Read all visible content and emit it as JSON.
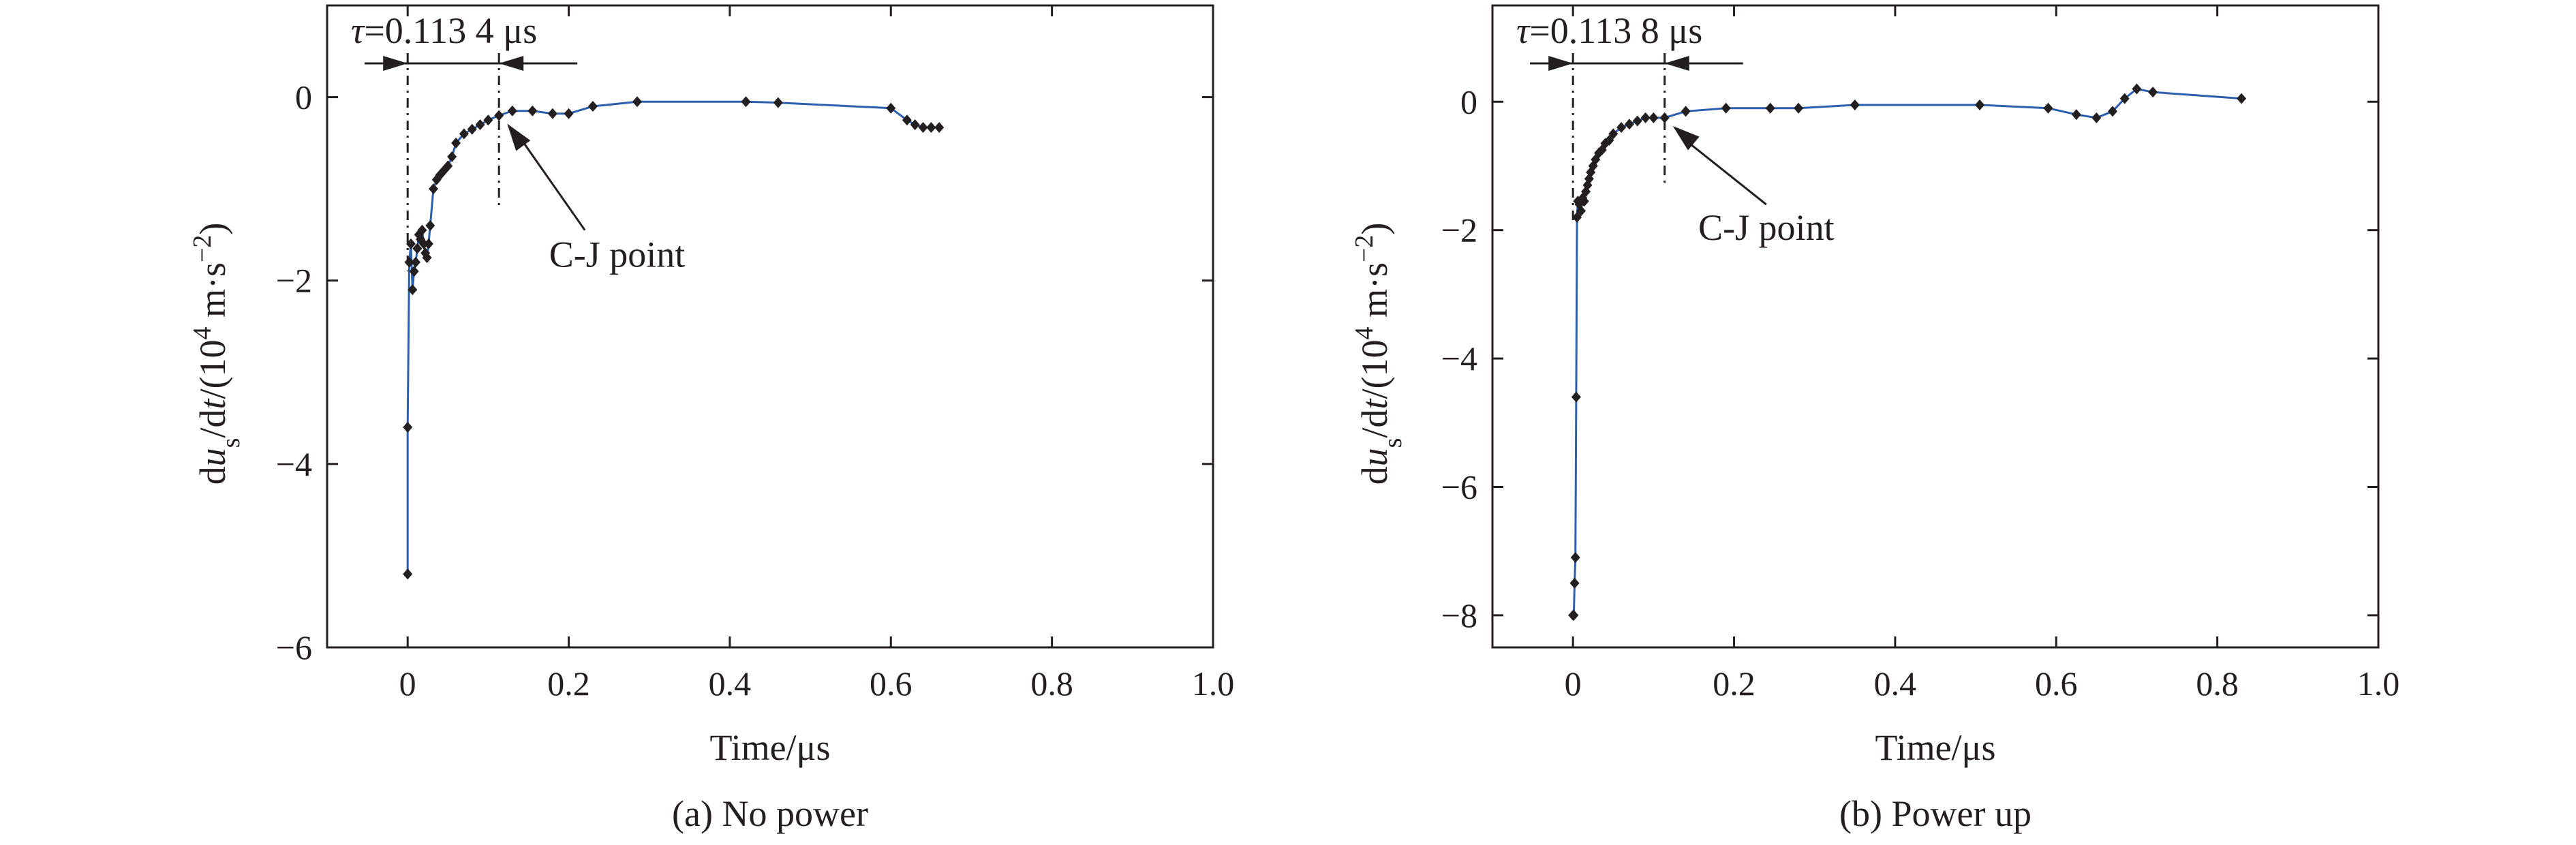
{
  "colors": {
    "line": "#2c5fad",
    "marker": "#231f20",
    "axis": "#231f20"
  },
  "chart_data": [
    {
      "type": "line",
      "caption": "(a) No power",
      "xlabel": "Time/μs",
      "ylabel": {
        "parts": [
          "d",
          "u",
          "s",
          "/d",
          "t",
          "/(10",
          "4",
          " m·s",
          "−2",
          ")"
        ]
      },
      "xlim": [
        -0.1,
        1.0
      ],
      "ylim": [
        -6,
        1.0
      ],
      "xticks": [
        0,
        0.2,
        0.4,
        0.6,
        0.8,
        1.0
      ],
      "xtick_labels": [
        "0",
        "0.2",
        "0.4",
        "0.6",
        "0.8",
        "1.0"
      ],
      "yticks": [
        -6,
        -4,
        -2,
        0
      ],
      "ytick_labels": [
        "−6",
        "−4",
        "−2",
        "0"
      ],
      "grid": false,
      "tau_label": {
        "symbol": "τ",
        "value": "=0.113 4 μs"
      },
      "tau_range": [
        0,
        0.1134
      ],
      "annotation": "C-J point",
      "cj_point": [
        0.1134,
        -0.2
      ],
      "series": [
        {
          "x": [
            0,
            0,
            0.002,
            0.004,
            0.006,
            0.008,
            0.01,
            0.012,
            0.014,
            0.016,
            0.018,
            0.02,
            0.022,
            0.024,
            0.026,
            0.028,
            0.032,
            0.036,
            0.04,
            0.045,
            0.05,
            0.055,
            0.06,
            0.07,
            0.08,
            0.09,
            0.1,
            0.1134,
            0.13,
            0.155,
            0.18,
            0.2,
            0.23,
            0.285,
            0.42,
            0.46,
            0.6,
            0.62,
            0.63,
            0.64,
            0.65,
            0.66
          ],
          "y": [
            -5.2,
            -3.6,
            -1.8,
            -1.6,
            -2.1,
            -1.9,
            -1.8,
            -1.65,
            -1.5,
            -1.55,
            -1.45,
            -1.6,
            -1.7,
            -1.75,
            -1.6,
            -1.4,
            -1.0,
            -0.9,
            -0.85,
            -0.8,
            -0.75,
            -0.65,
            -0.5,
            -0.4,
            -0.35,
            -0.3,
            -0.25,
            -0.2,
            -0.15,
            -0.15,
            -0.18,
            -0.18,
            -0.1,
            -0.05,
            -0.05,
            -0.06,
            -0.12,
            -0.25,
            -0.3,
            -0.33,
            -0.33,
            -0.33
          ]
        }
      ]
    },
    {
      "type": "line",
      "caption": "(b) Power up",
      "xlabel": "Time/μs",
      "ylabel": {
        "parts": [
          "d",
          "u",
          "s",
          "/d",
          "t",
          "/(10",
          "4",
          " m·s",
          "−2",
          ")"
        ]
      },
      "xlim": [
        -0.1,
        1.0
      ],
      "ylim": [
        -8.5,
        1.5
      ],
      "xticks": [
        0,
        0.2,
        0.4,
        0.6,
        0.8,
        1.0
      ],
      "xtick_labels": [
        "0",
        "0.2",
        "0.4",
        "0.6",
        "0.8",
        "1.0"
      ],
      "yticks": [
        -8,
        -6,
        -4,
        -2,
        0
      ],
      "ytick_labels": [
        "−8",
        "−6",
        "−4",
        "−2",
        "0"
      ],
      "grid": false,
      "tau_label": {
        "symbol": "τ",
        "value": "=0.113 8 μs"
      },
      "tau_range": [
        0,
        0.1138
      ],
      "annotation": "C-J point",
      "cj_point": [
        0.1138,
        -0.25
      ],
      "series": [
        {
          "x": [
            0,
            0.001,
            0.002,
            0.003,
            0.004,
            0.005,
            0.006,
            0.008,
            0.01,
            0.012,
            0.014,
            0.016,
            0.018,
            0.02,
            0.022,
            0.025,
            0.028,
            0.032,
            0.036,
            0.04,
            0.045,
            0.05,
            0.06,
            0.07,
            0.08,
            0.09,
            0.1,
            0.1138,
            0.14,
            0.19,
            0.245,
            0.28,
            0.35,
            0.505,
            0.59,
            0.625,
            0.65,
            0.67,
            0.685,
            0.7,
            0.72,
            0.83
          ],
          "y": [
            -8.0,
            -8.0,
            -7.5,
            -7.1,
            -4.6,
            -1.8,
            -1.55,
            -1.6,
            -1.7,
            -1.5,
            -1.55,
            -1.4,
            -1.3,
            -1.2,
            -1.1,
            -1.0,
            -0.9,
            -0.8,
            -0.75,
            -0.65,
            -0.6,
            -0.5,
            -0.4,
            -0.35,
            -0.3,
            -0.25,
            -0.25,
            -0.25,
            -0.15,
            -0.1,
            -0.1,
            -0.1,
            -0.05,
            -0.05,
            -0.1,
            -0.2,
            -0.25,
            -0.15,
            0.05,
            0.2,
            0.15,
            0.05
          ]
        }
      ]
    }
  ]
}
